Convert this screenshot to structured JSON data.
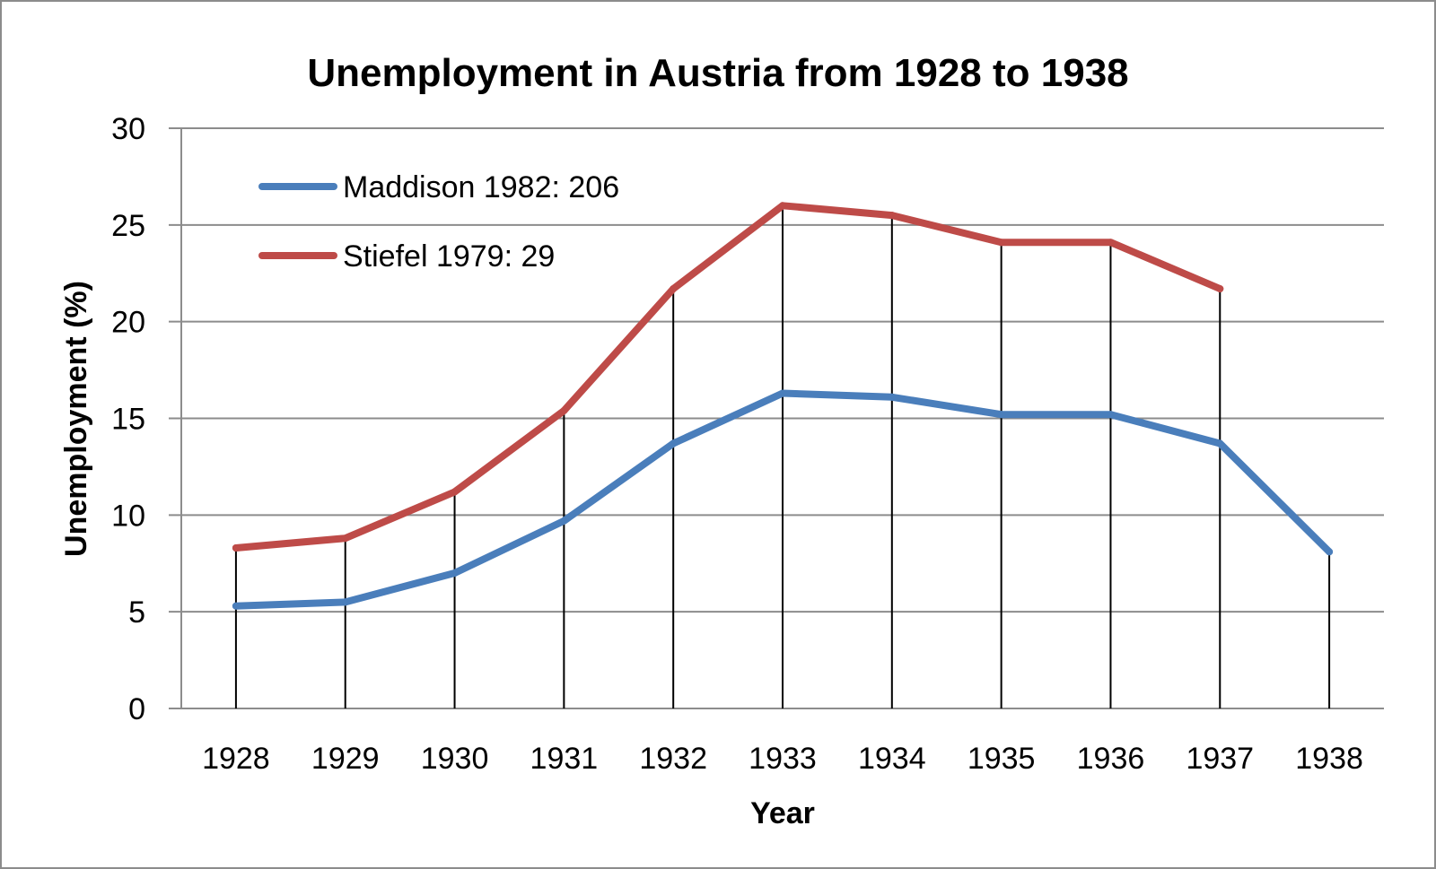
{
  "chart_data": {
    "type": "line",
    "title": "Unemployment in Austria from 1928 to 1938",
    "xlabel": "Year",
    "ylabel": "Unemployment (%)",
    "categories": [
      "1928",
      "1929",
      "1930",
      "1931",
      "1932",
      "1933",
      "1934",
      "1935",
      "1936",
      "1937",
      "1938"
    ],
    "ylim": [
      0,
      30
    ],
    "yticks": [
      "0",
      "5",
      "10",
      "15",
      "20",
      "25",
      "30"
    ],
    "grid": true,
    "drop_lines": true,
    "legend_position": "top-left",
    "series": [
      {
        "name": "Maddison 1982: 206",
        "color": "#4a7ebb",
        "values": [
          5.3,
          5.5,
          7.0,
          9.7,
          13.7,
          16.3,
          16.1,
          15.2,
          15.2,
          13.7,
          8.1
        ]
      },
      {
        "name": "Stiefel 1979: 29",
        "color": "#be4b48",
        "values": [
          8.3,
          8.8,
          11.2,
          15.4,
          21.7,
          26.0,
          25.5,
          24.1,
          24.1,
          21.7,
          null
        ]
      }
    ]
  }
}
